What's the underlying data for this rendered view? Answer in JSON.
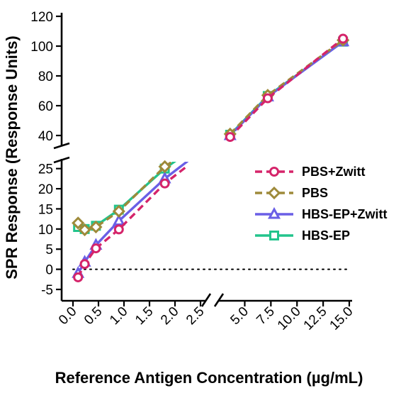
{
  "chart_data": {
    "type": "line",
    "xlabel": "Reference Antigen Concentration (µg/mL)",
    "ylabel": "SPR Response (Response Units)",
    "x_axis": {
      "segments": [
        {
          "range": [
            0,
            2.5
          ],
          "ticks": [
            "0.0",
            "0.5",
            "1.0",
            "1.5",
            "2.0",
            "2.5"
          ]
        },
        {
          "range": [
            2.8,
            15
          ],
          "ticks": [
            "5.0",
            "7.5",
            "10.0",
            "12.5",
            "15.0"
          ]
        }
      ]
    },
    "y_axis": {
      "segments": [
        {
          "range": [
            -5,
            26
          ],
          "ticks": [
            "-5",
            "0",
            "5",
            "10",
            "15",
            "20",
            "25"
          ]
        },
        {
          "range": [
            30,
            120
          ],
          "ticks": [
            "40",
            "60",
            "80",
            "100",
            "120"
          ]
        }
      ]
    },
    "zero_line": true,
    "legend_position": "right",
    "series": [
      {
        "name": "PBS+Zwitt",
        "color": "#d5246a",
        "marker": "circle",
        "dashed": true,
        "x": [
          0.1,
          0.23,
          0.45,
          0.9,
          1.8,
          3.6,
          7.2,
          14.4
        ],
        "y": [
          -2,
          1.3,
          5.2,
          9.9,
          21.3,
          39,
          65,
          105
        ]
      },
      {
        "name": "PBS",
        "color": "#9e8a3a",
        "marker": "diamond",
        "dashed": true,
        "x": [
          0.1,
          0.23,
          0.45,
          0.9,
          1.8,
          3.6,
          7.2,
          14.4
        ],
        "y": [
          11.5,
          9.8,
          10.5,
          14.4,
          25.5,
          41,
          67,
          104
        ]
      },
      {
        "name": "HBS-EP+Zwitt",
        "color": "#6a5fe6",
        "marker": "triangle",
        "dashed": false,
        "x": [
          0.1,
          0.23,
          0.45,
          0.9,
          1.8,
          3.6,
          7.2,
          14.4
        ],
        "y": [
          -1,
          1.8,
          6,
          12,
          22.5,
          40,
          66,
          103
        ]
      },
      {
        "name": "HBS-EP",
        "color": "#22c48c",
        "marker": "square",
        "dashed": false,
        "x": [
          0.1,
          0.23,
          0.45,
          0.9,
          1.8,
          3.6,
          7.2,
          14.4
        ],
        "y": [
          10.5,
          10,
          10.8,
          14.8,
          25,
          40.5,
          66.5,
          103
        ]
      }
    ]
  }
}
